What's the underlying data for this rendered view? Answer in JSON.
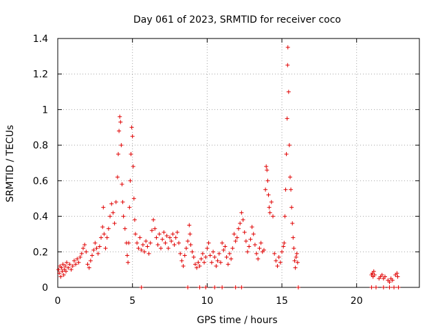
{
  "chart_data": {
    "type": "scatter",
    "title": "Day 061 of 2023, SRMTID for receiver coco",
    "xlabel": "GPS time / hours",
    "ylabel": "SRMTID / TECUs",
    "xlim": [
      0,
      24.2
    ],
    "ylim": [
      0,
      1.4
    ],
    "x_ticks": [
      0,
      5,
      10,
      15,
      20
    ],
    "x_tick_labels": [
      "0",
      "5",
      "10",
      "15",
      "20"
    ],
    "y_ticks": [
      0,
      0.2,
      0.4,
      0.6,
      0.8,
      1.0,
      1.2,
      1.4
    ],
    "y_tick_labels": [
      "0",
      "0.2",
      "0.4",
      "0.6",
      "0.8",
      "1",
      "1.2",
      "1.4"
    ],
    "grid": true,
    "marker": "+",
    "color": "#e00000",
    "series": [
      {
        "name": "SRMTID",
        "points": [
          [
            0.05,
            0.1
          ],
          [
            0.1,
            0.08
          ],
          [
            0.15,
            0.12
          ],
          [
            0.2,
            0.06
          ],
          [
            0.25,
            0.11
          ],
          [
            0.3,
            0.09
          ],
          [
            0.35,
            0.13
          ],
          [
            0.4,
            0.07
          ],
          [
            0.45,
            0.1
          ],
          [
            0.5,
            0.12
          ],
          [
            0.55,
            0.09
          ],
          [
            0.6,
            0.14
          ],
          [
            0.7,
            0.11
          ],
          [
            0.8,
            0.13
          ],
          [
            0.9,
            0.1
          ],
          [
            1.0,
            0.12
          ],
          [
            1.1,
            0.15
          ],
          [
            1.2,
            0.13
          ],
          [
            1.3,
            0.16
          ],
          [
            1.4,
            0.14
          ],
          [
            1.5,
            0.17
          ],
          [
            1.6,
            0.19
          ],
          [
            1.7,
            0.22
          ],
          [
            1.8,
            0.24
          ],
          [
            1.9,
            0.2
          ],
          [
            2.0,
            0.13
          ],
          [
            2.1,
            0.11
          ],
          [
            2.2,
            0.15
          ],
          [
            2.3,
            0.18
          ],
          [
            2.4,
            0.21
          ],
          [
            2.5,
            0.25
          ],
          [
            2.6,
            0.22
          ],
          [
            2.7,
            0.19
          ],
          [
            2.8,
            0.23
          ],
          [
            2.9,
            0.28
          ],
          [
            3.0,
            0.34
          ],
          [
            3.05,
            0.45
          ],
          [
            3.1,
            0.3
          ],
          [
            3.2,
            0.22
          ],
          [
            3.3,
            0.28
          ],
          [
            3.4,
            0.33
          ],
          [
            3.5,
            0.4
          ],
          [
            3.6,
            0.47
          ],
          [
            3.7,
            0.42
          ],
          [
            3.8,
            0.36
          ],
          [
            3.9,
            0.48
          ],
          [
            4.0,
            0.62
          ],
          [
            4.05,
            0.75
          ],
          [
            4.1,
            0.88
          ],
          [
            4.15,
            0.96
          ],
          [
            4.2,
            0.93
          ],
          [
            4.25,
            0.8
          ],
          [
            4.3,
            0.58
          ],
          [
            4.35,
            0.48
          ],
          [
            4.4,
            0.4
          ],
          [
            4.5,
            0.33
          ],
          [
            4.6,
            0.25
          ],
          [
            4.65,
            0.18
          ],
          [
            4.7,
            0.14
          ],
          [
            4.75,
            0.25
          ],
          [
            4.8,
            0.45
          ],
          [
            4.85,
            0.6
          ],
          [
            4.9,
            0.75
          ],
          [
            4.95,
            0.9
          ],
          [
            5.0,
            0.85
          ],
          [
            5.05,
            0.68
          ],
          [
            5.1,
            0.5
          ],
          [
            5.15,
            0.38
          ],
          [
            5.2,
            0.3
          ],
          [
            5.3,
            0.25
          ],
          [
            5.4,
            0.22
          ],
          [
            5.5,
            0.28
          ],
          [
            5.6,
            0.21
          ],
          [
            5.7,
            0.24
          ],
          [
            5.8,
            0.2
          ],
          [
            5.9,
            0.26
          ],
          [
            6.0,
            0.23
          ],
          [
            6.1,
            0.19
          ],
          [
            6.2,
            0.25
          ],
          [
            6.3,
            0.32
          ],
          [
            6.4,
            0.38
          ],
          [
            6.5,
            0.33
          ],
          [
            6.6,
            0.28
          ],
          [
            6.7,
            0.24
          ],
          [
            6.8,
            0.3
          ],
          [
            6.9,
            0.22
          ],
          [
            7.0,
            0.27
          ],
          [
            7.1,
            0.31
          ],
          [
            7.2,
            0.25
          ],
          [
            7.3,
            0.29
          ],
          [
            7.4,
            0.22
          ],
          [
            7.5,
            0.28
          ],
          [
            7.6,
            0.26
          ],
          [
            7.7,
            0.3
          ],
          [
            7.8,
            0.24
          ],
          [
            7.9,
            0.28
          ],
          [
            8.0,
            0.31
          ],
          [
            8.1,
            0.25
          ],
          [
            8.2,
            0.19
          ],
          [
            8.3,
            0.15
          ],
          [
            8.4,
            0.12
          ],
          [
            8.5,
            0.18
          ],
          [
            8.6,
            0.22
          ],
          [
            8.7,
            0.26
          ],
          [
            8.8,
            0.35
          ],
          [
            8.85,
            0.3
          ],
          [
            8.9,
            0.24
          ],
          [
            9.0,
            0.2
          ],
          [
            9.1,
            0.17
          ],
          [
            9.2,
            0.13
          ],
          [
            9.3,
            0.11
          ],
          [
            9.4,
            0.14
          ],
          [
            9.5,
            0.12
          ],
          [
            9.6,
            0.16
          ],
          [
            9.7,
            0.19
          ],
          [
            9.8,
            0.14
          ],
          [
            9.9,
            0.17
          ],
          [
            10.0,
            0.22
          ],
          [
            10.1,
            0.25
          ],
          [
            10.2,
            0.18
          ],
          [
            10.3,
            0.14
          ],
          [
            10.4,
            0.2
          ],
          [
            10.5,
            0.17
          ],
          [
            10.6,
            0.12
          ],
          [
            10.7,
            0.15
          ],
          [
            10.8,
            0.19
          ],
          [
            10.9,
            0.14
          ],
          [
            11.0,
            0.25
          ],
          [
            11.1,
            0.21
          ],
          [
            11.2,
            0.23
          ],
          [
            11.3,
            0.17
          ],
          [
            11.4,
            0.13
          ],
          [
            11.5,
            0.19
          ],
          [
            11.6,
            0.16
          ],
          [
            11.7,
            0.22
          ],
          [
            11.8,
            0.3
          ],
          [
            11.9,
            0.26
          ],
          [
            12.0,
            0.28
          ],
          [
            12.1,
            0.33
          ],
          [
            12.2,
            0.36
          ],
          [
            12.3,
            0.42
          ],
          [
            12.4,
            0.38
          ],
          [
            12.5,
            0.31
          ],
          [
            12.6,
            0.26
          ],
          [
            12.7,
            0.2
          ],
          [
            12.8,
            0.23
          ],
          [
            12.9,
            0.27
          ],
          [
            13.0,
            0.34
          ],
          [
            13.1,
            0.3
          ],
          [
            13.2,
            0.24
          ],
          [
            13.3,
            0.19
          ],
          [
            13.4,
            0.16
          ],
          [
            13.5,
            0.22
          ],
          [
            13.6,
            0.25
          ],
          [
            13.7,
            0.2
          ],
          [
            13.8,
            0.21
          ],
          [
            13.9,
            0.55
          ],
          [
            13.95,
            0.68
          ],
          [
            14.0,
            0.66
          ],
          [
            14.05,
            0.6
          ],
          [
            14.1,
            0.52
          ],
          [
            14.15,
            0.45
          ],
          [
            14.2,
            0.42
          ],
          [
            14.3,
            0.48
          ],
          [
            14.4,
            0.4
          ],
          [
            14.5,
            0.19
          ],
          [
            14.6,
            0.15
          ],
          [
            14.7,
            0.12
          ],
          [
            14.8,
            0.17
          ],
          [
            14.9,
            0.14
          ],
          [
            15.0,
            0.2
          ],
          [
            15.1,
            0.23
          ],
          [
            15.15,
            0.25
          ],
          [
            15.2,
            0.4
          ],
          [
            15.25,
            0.55
          ],
          [
            15.3,
            0.75
          ],
          [
            15.35,
            0.95
          ],
          [
            15.38,
            1.25
          ],
          [
            15.4,
            1.35
          ],
          [
            15.45,
            1.1
          ],
          [
            15.5,
            0.8
          ],
          [
            15.55,
            0.62
          ],
          [
            15.6,
            0.55
          ],
          [
            15.65,
            0.45
          ],
          [
            15.7,
            0.36
          ],
          [
            15.75,
            0.28
          ],
          [
            15.8,
            0.22
          ],
          [
            15.85,
            0.15
          ],
          [
            15.9,
            0.11
          ],
          [
            15.95,
            0.17
          ],
          [
            16.0,
            0.19
          ],
          [
            16.05,
            0.14
          ],
          [
            5.6,
            0.0
          ],
          [
            8.7,
            0.0
          ],
          [
            9.5,
            0.0
          ],
          [
            9.9,
            0.0
          ],
          [
            10.5,
            0.0
          ],
          [
            11.0,
            0.0
          ],
          [
            11.9,
            0.0
          ],
          [
            12.3,
            0.0
          ],
          [
            16.1,
            0.0
          ],
          [
            21.0,
            0.07
          ],
          [
            21.05,
            0.08
          ],
          [
            21.1,
            0.06
          ],
          [
            21.15,
            0.09
          ],
          [
            21.2,
            0.07
          ],
          [
            21.5,
            0.05
          ],
          [
            21.6,
            0.06
          ],
          [
            21.7,
            0.07
          ],
          [
            21.8,
            0.05
          ],
          [
            21.9,
            0.06
          ],
          [
            22.1,
            0.04
          ],
          [
            22.2,
            0.03
          ],
          [
            22.3,
            0.05
          ],
          [
            22.4,
            0.04
          ],
          [
            22.6,
            0.07
          ],
          [
            22.7,
            0.08
          ],
          [
            22.75,
            0.06
          ],
          [
            21.0,
            0.0
          ],
          [
            21.3,
            0.0
          ],
          [
            21.8,
            0.0
          ],
          [
            22.2,
            0.0
          ],
          [
            22.5,
            0.0
          ],
          [
            22.8,
            0.0
          ]
        ]
      }
    ]
  }
}
